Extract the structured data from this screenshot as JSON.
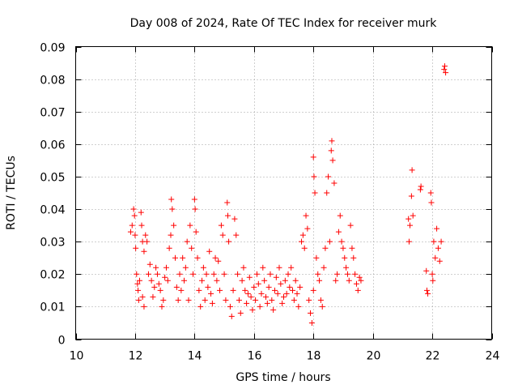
{
  "chart_data": {
    "type": "scatter",
    "title": "Day 008 of 2024, Rate Of TEC Index for receiver murk",
    "xlabel": "GPS time / hours",
    "ylabel": "ROTI / TECUs",
    "xlim": [
      10,
      24
    ],
    "ylim": [
      0,
      0.09
    ],
    "xticks": [
      10,
      12,
      14,
      16,
      18,
      20,
      22,
      24
    ],
    "yticks": [
      0,
      0.01,
      0.02,
      0.03,
      0.04,
      0.05,
      0.06,
      0.07,
      0.08,
      0.09
    ],
    "ytick_labels": [
      "0",
      "0.01",
      "0.02",
      "0.03",
      "0.04",
      "0.05",
      "0.06",
      "0.07",
      "0.08",
      "0.09"
    ],
    "grid": true,
    "marker": "+",
    "color": "#ff0000",
    "series": [
      {
        "name": "",
        "points": [
          [
            11.85,
            0.033
          ],
          [
            11.9,
            0.035
          ],
          [
            11.95,
            0.04
          ],
          [
            11.98,
            0.038
          ],
          [
            12.0,
            0.032
          ],
          [
            12.02,
            0.028
          ],
          [
            12.05,
            0.02
          ],
          [
            12.08,
            0.017
          ],
          [
            12.1,
            0.015
          ],
          [
            12.12,
            0.012
          ],
          [
            12.15,
            0.018
          ],
          [
            12.2,
            0.039
          ],
          [
            12.22,
            0.035
          ],
          [
            12.25,
            0.03
          ],
          [
            12.3,
            0.027
          ],
          [
            12.35,
            0.032
          ],
          [
            12.4,
            0.03
          ],
          [
            12.25,
            0.013
          ],
          [
            12.3,
            0.01
          ],
          [
            12.45,
            0.02
          ],
          [
            12.5,
            0.023
          ],
          [
            12.55,
            0.018
          ],
          [
            12.6,
            0.013
          ],
          [
            12.65,
            0.016
          ],
          [
            12.7,
            0.022
          ],
          [
            12.75,
            0.02
          ],
          [
            12.8,
            0.017
          ],
          [
            12.85,
            0.015
          ],
          [
            12.9,
            0.01
          ],
          [
            12.95,
            0.012
          ],
          [
            13.0,
            0.019
          ],
          [
            13.05,
            0.022
          ],
          [
            13.1,
            0.018
          ],
          [
            13.15,
            0.028
          ],
          [
            13.2,
            0.032
          ],
          [
            13.22,
            0.043
          ],
          [
            13.25,
            0.04
          ],
          [
            13.3,
            0.035
          ],
          [
            13.35,
            0.025
          ],
          [
            13.4,
            0.016
          ],
          [
            13.45,
            0.012
          ],
          [
            13.5,
            0.02
          ],
          [
            13.55,
            0.015
          ],
          [
            13.6,
            0.025
          ],
          [
            13.65,
            0.018
          ],
          [
            13.7,
            0.022
          ],
          [
            13.75,
            0.03
          ],
          [
            13.8,
            0.012
          ],
          [
            13.85,
            0.035
          ],
          [
            13.9,
            0.028
          ],
          [
            13.95,
            0.02
          ],
          [
            14.0,
            0.043
          ],
          [
            14.02,
            0.04
          ],
          [
            14.05,
            0.033
          ],
          [
            14.1,
            0.025
          ],
          [
            14.15,
            0.015
          ],
          [
            14.2,
            0.01
          ],
          [
            14.25,
            0.018
          ],
          [
            14.3,
            0.022
          ],
          [
            14.35,
            0.012
          ],
          [
            14.4,
            0.02
          ],
          [
            14.45,
            0.016
          ],
          [
            14.5,
            0.027
          ],
          [
            14.55,
            0.014
          ],
          [
            14.6,
            0.011
          ],
          [
            14.65,
            0.02
          ],
          [
            14.7,
            0.025
          ],
          [
            14.75,
            0.018
          ],
          [
            14.8,
            0.024
          ],
          [
            14.85,
            0.015
          ],
          [
            14.9,
            0.035
          ],
          [
            14.95,
            0.032
          ],
          [
            15.0,
            0.02
          ],
          [
            15.05,
            0.012
          ],
          [
            15.1,
            0.042
          ],
          [
            15.12,
            0.038
          ],
          [
            15.15,
            0.03
          ],
          [
            15.2,
            0.01
          ],
          [
            15.25,
            0.007
          ],
          [
            15.3,
            0.015
          ],
          [
            15.35,
            0.037
          ],
          [
            15.4,
            0.032
          ],
          [
            15.45,
            0.02
          ],
          [
            15.5,
            0.012
          ],
          [
            15.55,
            0.008
          ],
          [
            15.6,
            0.018
          ],
          [
            15.65,
            0.022
          ],
          [
            15.7,
            0.015
          ],
          [
            15.75,
            0.011
          ],
          [
            15.8,
            0.014
          ],
          [
            15.85,
            0.019
          ],
          [
            15.9,
            0.013
          ],
          [
            15.95,
            0.009
          ],
          [
            16.0,
            0.016
          ],
          [
            16.05,
            0.012
          ],
          [
            16.1,
            0.02
          ],
          [
            16.15,
            0.017
          ],
          [
            16.2,
            0.01
          ],
          [
            16.25,
            0.014
          ],
          [
            16.3,
            0.022
          ],
          [
            16.35,
            0.018
          ],
          [
            16.4,
            0.013
          ],
          [
            16.45,
            0.011
          ],
          [
            16.5,
            0.016
          ],
          [
            16.55,
            0.02
          ],
          [
            16.6,
            0.012
          ],
          [
            16.65,
            0.009
          ],
          [
            16.7,
            0.015
          ],
          [
            16.75,
            0.019
          ],
          [
            16.8,
            0.014
          ],
          [
            16.85,
            0.022
          ],
          [
            16.9,
            0.017
          ],
          [
            16.95,
            0.011
          ],
          [
            17.0,
            0.013
          ],
          [
            17.05,
            0.018
          ],
          [
            17.1,
            0.014
          ],
          [
            17.15,
            0.02
          ],
          [
            17.2,
            0.016
          ],
          [
            17.25,
            0.022
          ],
          [
            17.3,
            0.015
          ],
          [
            17.35,
            0.012
          ],
          [
            17.4,
            0.018
          ],
          [
            17.45,
            0.014
          ],
          [
            17.5,
            0.01
          ],
          [
            17.55,
            0.016
          ],
          [
            17.6,
            0.03
          ],
          [
            17.65,
            0.032
          ],
          [
            17.7,
            0.028
          ],
          [
            17.75,
            0.038
          ],
          [
            17.8,
            0.034
          ],
          [
            17.85,
            0.012
          ],
          [
            17.9,
            0.008
          ],
          [
            17.95,
            0.005
          ],
          [
            18.0,
            0.015
          ],
          [
            18.0,
            0.056
          ],
          [
            18.02,
            0.05
          ],
          [
            18.05,
            0.045
          ],
          [
            18.1,
            0.025
          ],
          [
            18.15,
            0.02
          ],
          [
            18.2,
            0.018
          ],
          [
            18.25,
            0.012
          ],
          [
            18.3,
            0.01
          ],
          [
            18.35,
            0.022
          ],
          [
            18.4,
            0.028
          ],
          [
            18.45,
            0.045
          ],
          [
            18.5,
            0.05
          ],
          [
            18.55,
            0.03
          ],
          [
            18.6,
            0.058
          ],
          [
            18.62,
            0.061
          ],
          [
            18.65,
            0.055
          ],
          [
            18.7,
            0.048
          ],
          [
            18.75,
            0.018
          ],
          [
            18.8,
            0.02
          ],
          [
            18.85,
            0.033
          ],
          [
            18.9,
            0.038
          ],
          [
            18.95,
            0.03
          ],
          [
            19.0,
            0.028
          ],
          [
            19.05,
            0.025
          ],
          [
            19.1,
            0.022
          ],
          [
            19.15,
            0.02
          ],
          [
            19.2,
            0.018
          ],
          [
            19.25,
            0.035
          ],
          [
            19.3,
            0.028
          ],
          [
            19.35,
            0.025
          ],
          [
            19.4,
            0.02
          ],
          [
            19.45,
            0.017
          ],
          [
            19.5,
            0.015
          ],
          [
            19.55,
            0.019
          ],
          [
            19.6,
            0.018
          ],
          [
            21.2,
            0.037
          ],
          [
            21.22,
            0.03
          ],
          [
            21.25,
            0.035
          ],
          [
            21.3,
            0.044
          ],
          [
            21.32,
            0.052
          ],
          [
            21.35,
            0.038
          ],
          [
            21.6,
            0.046
          ],
          [
            21.62,
            0.047
          ],
          [
            21.8,
            0.021
          ],
          [
            21.82,
            0.015
          ],
          [
            21.85,
            0.014
          ],
          [
            21.95,
            0.045
          ],
          [
            21.97,
            0.042
          ],
          [
            22.0,
            0.02
          ],
          [
            22.02,
            0.018
          ],
          [
            22.05,
            0.03
          ],
          [
            22.1,
            0.025
          ],
          [
            22.15,
            0.034
          ],
          [
            22.2,
            0.028
          ],
          [
            22.25,
            0.024
          ],
          [
            22.3,
            0.03
          ],
          [
            22.4,
            0.083
          ],
          [
            22.42,
            0.084
          ],
          [
            22.45,
            0.082
          ]
        ]
      }
    ]
  }
}
